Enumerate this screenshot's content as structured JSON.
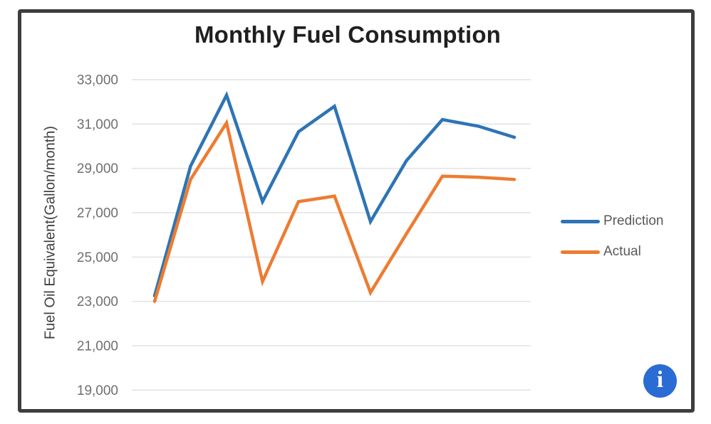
{
  "chart_data": {
    "type": "line",
    "title": "Monthly Fuel Consumption",
    "xlabel": "",
    "ylabel": "Fuel Oil Equivalent(Gallon/month)",
    "x": [
      1,
      2,
      3,
      4,
      5,
      6,
      7,
      8,
      9,
      10,
      11
    ],
    "x_tick_labels": [],
    "y_ticks": [
      33000,
      31000,
      29000,
      27000,
      25000,
      23000,
      21000,
      19000
    ],
    "y_tick_labels": [
      "33,000",
      "31,000",
      "29,000",
      "27,000",
      "25,000",
      "23,000",
      "21,000",
      "19,000"
    ],
    "ylim": [
      19000,
      33000
    ],
    "grid": "horizontal",
    "legend_position": "right",
    "series": [
      {
        "name": "Prediction",
        "color": "#2E74B5",
        "values": [
          23250,
          29100,
          32300,
          27500,
          30650,
          31800,
          26600,
          29350,
          31200,
          30900,
          30400
        ]
      },
      {
        "name": "Actual",
        "color": "#ED7C31",
        "values": [
          23000,
          28500,
          31050,
          23900,
          27500,
          27750,
          23400,
          26050,
          28650,
          28600,
          28500
        ]
      }
    ]
  },
  "colors": {
    "frame_border": "#3d3d3d",
    "gridline": "#e2e2e2",
    "tick_text": "#6f6f6f",
    "title_text": "#1f1f1f",
    "legend_text": "#595959",
    "info_button": "#2b6cd4"
  },
  "info": {
    "glyph": "i"
  }
}
